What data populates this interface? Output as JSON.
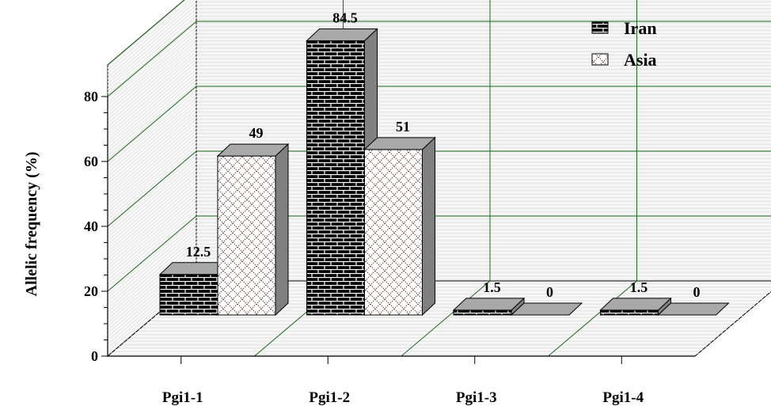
{
  "chart_data": {
    "type": "bar",
    "title": "",
    "xlabel": "",
    "ylabel": "Allelic frequency (%)",
    "ylim": [
      0,
      80
    ],
    "y_ticks": [
      0,
      20,
      40,
      60,
      80
    ],
    "categories": [
      "Pgi1-1",
      "Pgi1-2",
      "Pgi1-3",
      "Pgi1-4"
    ],
    "series": [
      {
        "name": "Iran",
        "values": [
          12.5,
          84.5,
          1.5,
          1.5
        ],
        "labels": [
          "12.5",
          "84.5",
          "1.5",
          "1.5"
        ],
        "pattern": "brick-black"
      },
      {
        "name": "Asia",
        "values": [
          49,
          51,
          0,
          0
        ],
        "labels": [
          "49",
          "51",
          "0",
          "0"
        ],
        "pattern": "lattice-light"
      }
    ],
    "legend_position": "top-right",
    "grid": true,
    "three_d": true
  }
}
